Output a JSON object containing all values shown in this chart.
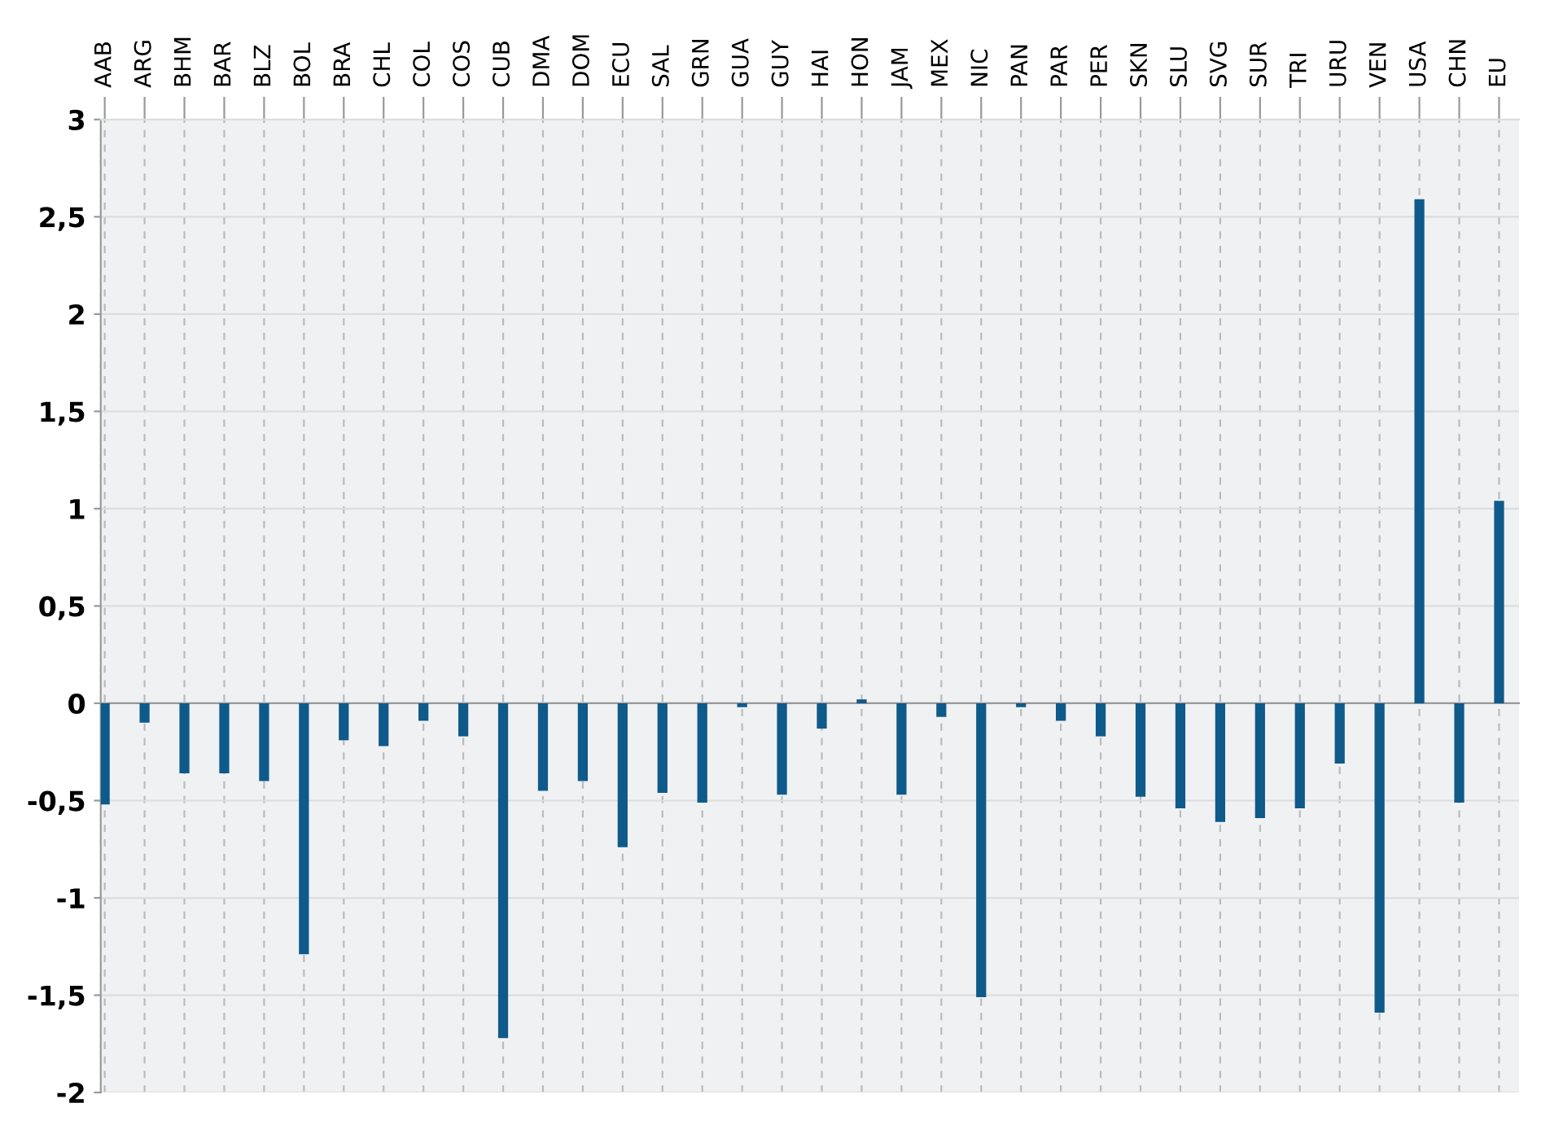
{
  "chart_data": {
    "type": "bar",
    "categories": [
      "AAB",
      "ARG",
      "BHM",
      "BAR",
      "BLZ",
      "BOL",
      "BRA",
      "CHL",
      "COL",
      "COS",
      "CUB",
      "DMA",
      "DOM",
      "ECU",
      "SAL",
      "GRN",
      "GUA",
      "GUY",
      "HAI",
      "HON",
      "JAM",
      "MEX",
      "NIC",
      "PAN",
      "PAR",
      "PER",
      "SKN",
      "SLU",
      "SVG",
      "SUR",
      "TRI",
      "URU",
      "VEN",
      "USA",
      "CHN",
      "EU"
    ],
    "values": [
      -0.52,
      -0.1,
      -0.36,
      -0.36,
      -0.4,
      -1.29,
      -0.19,
      -0.22,
      -0.09,
      -0.17,
      -1.72,
      -0.45,
      -0.4,
      -0.74,
      -0.46,
      -0.51,
      -0.02,
      -0.47,
      -0.13,
      0.02,
      -0.47,
      -0.07,
      -1.51,
      -0.02,
      -0.09,
      -0.17,
      -0.48,
      -0.54,
      -0.61,
      -0.59,
      -0.54,
      -0.31,
      -1.59,
      2.59,
      -0.51,
      1.04
    ],
    "color": "#0e5a8a",
    "ylim": [
      -2,
      3
    ],
    "yticks": [
      -2,
      {
        "value": -1.5,
        "label": "-1,5"
      },
      -1,
      {
        "value": -0.5,
        "label": "-0,5"
      },
      0,
      {
        "value": 0.5,
        "label": "0,5"
      },
      1,
      {
        "value": 1.5,
        "label": "1,5"
      },
      2,
      {
        "value": 2.5,
        "label": "2,5"
      },
      3
    ],
    "grid": true
  }
}
